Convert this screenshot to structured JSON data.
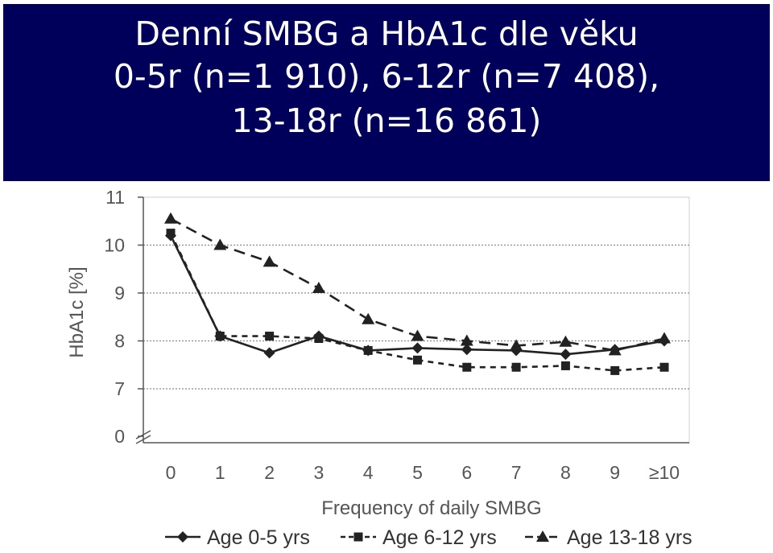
{
  "title_panel": {
    "line1": "Denní SMBG a HbA1c dle věku",
    "line2": "0-5r (n=1 910),  6-12r (n=7 408),",
    "line3": "13-18r (n=16 861)",
    "background": "#00005a",
    "text_color": "#ffffff"
  },
  "chart_data": {
    "type": "line",
    "xlabel": "Frequency of daily SMBG",
    "ylabel": "HbA1c [%]",
    "categories": [
      "0",
      "1",
      "2",
      "3",
      "4",
      "5",
      "6",
      "7",
      "8",
      "9",
      "≥10"
    ],
    "y_ticks": [
      "0",
      "7",
      "8",
      "9",
      "10",
      "11"
    ],
    "ylim": [
      7,
      11
    ],
    "y_axis_break": true,
    "grid": "horizontal dotted",
    "legend_position": "bottom",
    "series": [
      {
        "name": "Age 0-5 yrs",
        "marker": "diamond",
        "dash": "solid",
        "color": "#222222",
        "values": [
          10.2,
          8.1,
          7.75,
          8.1,
          7.8,
          7.85,
          7.82,
          7.8,
          7.72,
          7.82,
          8.0
        ]
      },
      {
        "name": "Age 6-12 yrs",
        "marker": "square",
        "dash": "short-dash",
        "color": "#222222",
        "values": [
          10.25,
          8.1,
          8.1,
          8.05,
          7.8,
          7.6,
          7.45,
          7.45,
          7.48,
          7.38,
          7.45
        ]
      },
      {
        "name": "Age 13-18 yrs",
        "marker": "triangle",
        "dash": "long-dash",
        "color": "#222222",
        "values": [
          10.55,
          10.0,
          9.65,
          9.1,
          8.45,
          8.1,
          8.0,
          7.9,
          7.98,
          7.8,
          8.05
        ]
      }
    ]
  }
}
